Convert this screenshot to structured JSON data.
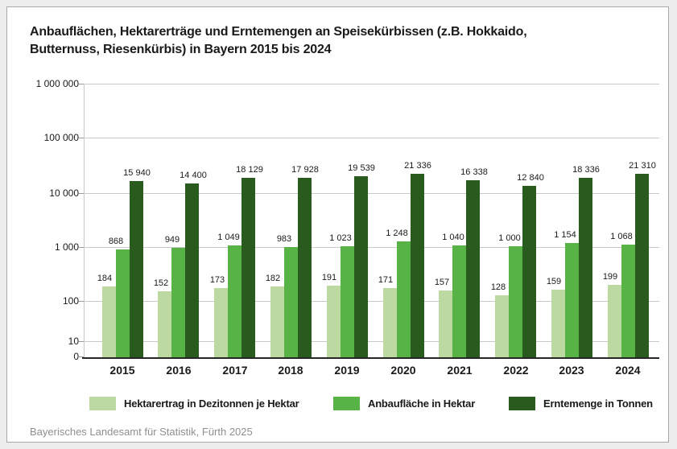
{
  "title": {
    "line1": "Anbauflächen, Hektarerträge und Erntemengen an Speisekürbissen (z.B. Hokkaido,",
    "line2": "Butternuss, Riesenkürbis) in Bayern 2015 bis 2024"
  },
  "footer": "Bayerisches Landesamt für Statistik, Fürth 2025",
  "chart_data": {
    "type": "bar",
    "scale": "log",
    "grid": true,
    "legend_position": "bottom",
    "ylim": [
      0,
      1000000
    ],
    "yticks": [
      "1 000 000",
      "100 000",
      "10 000",
      "1 000",
      "100",
      "10",
      "0"
    ],
    "categories": [
      "2015",
      "2016",
      "2017",
      "2018",
      "2019",
      "2020",
      "2021",
      "2022",
      "2023",
      "2024"
    ],
    "series": [
      {
        "name": "Hektarertrag in Dezitonnen je Hektar",
        "color": "#bdd9a2",
        "values": [
          184,
          152,
          173,
          182,
          191,
          171,
          157,
          128,
          159,
          199
        ],
        "labels": [
          "184",
          "152",
          "173",
          "182",
          "191",
          "171",
          "157",
          "128",
          "159",
          "199"
        ]
      },
      {
        "name": "Anbaufläche in Hektar",
        "color": "#57b345",
        "values": [
          868,
          949,
          1049,
          983,
          1023,
          1248,
          1040,
          1000,
          1154,
          1068
        ],
        "labels": [
          "868",
          "949",
          "1 049",
          "983",
          "1 023",
          "1 248",
          "1 040",
          "1 000",
          "1 154",
          "1 068"
        ]
      },
      {
        "name": "Erntemenge in Tonnen",
        "color": "#2a5b1e",
        "values": [
          15940,
          14400,
          18129,
          17928,
          19539,
          21336,
          16338,
          12840,
          18336,
          21310
        ],
        "labels": [
          "15 940",
          "14 400",
          "18 129",
          "17 928",
          "19 539",
          "21 336",
          "16 338",
          "12 840",
          "18 336",
          "21 310"
        ]
      }
    ]
  }
}
